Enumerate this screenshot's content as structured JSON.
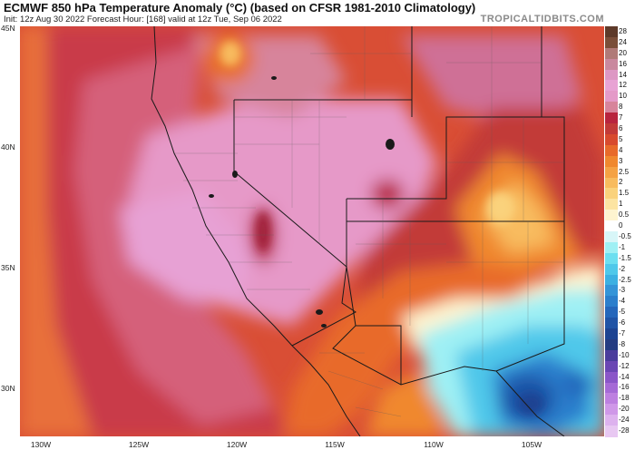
{
  "header": {
    "title": "ECMWF 850 hPa Temperature Anomaly (°C) (based on CFSR 1981-2010 Climatology)",
    "subtitle": "Init: 12z Aug 30 2022   Forecast Hour: [168]   valid at 12z Tue, Sep 06 2022",
    "brand": "TROPICALTIDBITS.COM"
  },
  "axes": {
    "lat_labels": [
      "45N",
      "40N",
      "35N",
      "30N"
    ],
    "lon_labels": [
      "130W",
      "125W",
      "120W",
      "115W",
      "110W",
      "105W"
    ]
  },
  "colorbar": {
    "labels": [
      "28",
      "24",
      "20",
      "16",
      "14",
      "12",
      "10",
      "8",
      "7",
      "6",
      "5",
      "4",
      "3",
      "2.5",
      "2",
      "1.5",
      "1",
      "0.5",
      "0",
      "-0.5",
      "-1",
      "-1.5",
      "-2",
      "-2.5",
      "-3",
      "-4",
      "-5",
      "-6",
      "-7",
      "-8",
      "-10",
      "-12",
      "-14",
      "-16",
      "-18",
      "-20",
      "-24",
      "-28"
    ],
    "colors": [
      "#5e3a2a",
      "#7a4e39",
      "#b07a78",
      "#c9889e",
      "#dd97c4",
      "#e8a3d4",
      "#e49ac8",
      "#d7849b",
      "#b8243e",
      "#c23a38",
      "#d84a2e",
      "#e86a2a",
      "#f0882e",
      "#f5a244",
      "#f8bb5e",
      "#fad27c",
      "#fce4a2",
      "#fef4d0",
      "#ffffff",
      "#d8f6f8",
      "#9ff0f4",
      "#6cdff0",
      "#4fc8ea",
      "#3cb0e2",
      "#3494d8",
      "#2b7ecc",
      "#2466bb",
      "#1f53a6",
      "#1c4392",
      "#243c82",
      "#4a3c9c",
      "#6a46b4",
      "#8a56c8",
      "#a56ad6",
      "#bd80e0",
      "#cf98e8",
      "#ddb2ee",
      "#e8c8f2"
    ]
  }
}
